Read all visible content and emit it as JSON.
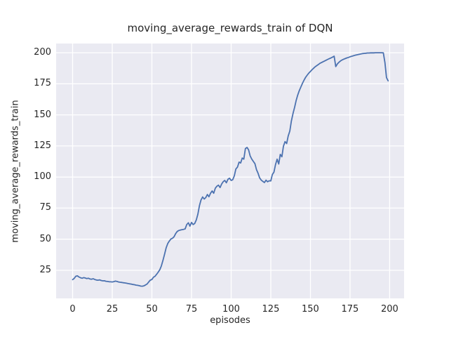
{
  "chart_data": {
    "type": "line",
    "title": "moving_average_rewards_train of DQN",
    "xlabel": "episodes",
    "ylabel": "moving_average_rewards_train",
    "xlim": [
      -10.4,
      209.1
    ],
    "ylim": [
      2.4,
      207.4
    ],
    "x_ticks": [
      0,
      25,
      50,
      75,
      100,
      125,
      150,
      175,
      200
    ],
    "y_ticks": [
      25,
      50,
      75,
      100,
      125,
      150,
      175,
      200
    ],
    "grid": true,
    "legend_position": "none",
    "colors": {
      "line": "#4c72b0",
      "plot_background": "#eaeaf2",
      "grid": "#ffffff",
      "figure_background": "#ffffff",
      "text": "#262626"
    },
    "series": [
      {
        "name": "moving_average_rewards_train",
        "points": [
          [
            0,
            17.5
          ],
          [
            1,
            18.5
          ],
          [
            2,
            20.2
          ],
          [
            3,
            20.5
          ],
          [
            4,
            19.6
          ],
          [
            5,
            19.0
          ],
          [
            6,
            18.6
          ],
          [
            7,
            19.1
          ],
          [
            8,
            18.8
          ],
          [
            9,
            18.3
          ],
          [
            10,
            18.6
          ],
          [
            11,
            18.0
          ],
          [
            12,
            17.8
          ],
          [
            13,
            18.2
          ],
          [
            14,
            17.6
          ],
          [
            15,
            17.2
          ],
          [
            16,
            17.0
          ],
          [
            17,
            17.3
          ],
          [
            18,
            16.8
          ],
          [
            19,
            16.5
          ],
          [
            20,
            16.6
          ],
          [
            21,
            16.2
          ],
          [
            22,
            16.0
          ],
          [
            23,
            15.8
          ],
          [
            24,
            15.7
          ],
          [
            25,
            15.6
          ],
          [
            26,
            15.9
          ],
          [
            27,
            16.3
          ],
          [
            28,
            16.0
          ],
          [
            29,
            15.6
          ],
          [
            30,
            15.4
          ],
          [
            31,
            15.2
          ],
          [
            32,
            15.0
          ],
          [
            33,
            14.8
          ],
          [
            34,
            14.6
          ],
          [
            35,
            14.3
          ],
          [
            36,
            14.1
          ],
          [
            37,
            13.9
          ],
          [
            38,
            13.6
          ],
          [
            39,
            13.4
          ],
          [
            40,
            13.1
          ],
          [
            41,
            12.9
          ],
          [
            42,
            12.6
          ],
          [
            43,
            12.3
          ],
          [
            44,
            12.2
          ],
          [
            45,
            12.5
          ],
          [
            46,
            13.2
          ],
          [
            47,
            14.0
          ],
          [
            48,
            15.6
          ],
          [
            49,
            17.1
          ],
          [
            50,
            17.6
          ],
          [
            51,
            19.4
          ],
          [
            52,
            20.2
          ],
          [
            53,
            21.8
          ],
          [
            54,
            23.5
          ],
          [
            55,
            25.5
          ],
          [
            56,
            28.5
          ],
          [
            57,
            33.0
          ],
          [
            58,
            38.0
          ],
          [
            59,
            43.0
          ],
          [
            60,
            46.5
          ],
          [
            61,
            48.5
          ],
          [
            62,
            50.2
          ],
          [
            63,
            50.8
          ],
          [
            64,
            52.0
          ],
          [
            65,
            54.5
          ],
          [
            66,
            56.2
          ],
          [
            67,
            57.0
          ],
          [
            68,
            57.4
          ],
          [
            69,
            57.7
          ],
          [
            70,
            57.9
          ],
          [
            71,
            58.3
          ],
          [
            72,
            61.8
          ],
          [
            73,
            63.2
          ],
          [
            74,
            60.5
          ],
          [
            75,
            63.5
          ],
          [
            76,
            61.8
          ],
          [
            77,
            62.6
          ],
          [
            78,
            65.5
          ],
          [
            79,
            70.0
          ],
          [
            80,
            77.0
          ],
          [
            81,
            81.5
          ],
          [
            82,
            84.0
          ],
          [
            83,
            82.3
          ],
          [
            84,
            83.5
          ],
          [
            85,
            86.0
          ],
          [
            86,
            84.2
          ],
          [
            87,
            87.0
          ],
          [
            88,
            88.8
          ],
          [
            89,
            87.0
          ],
          [
            90,
            91.0
          ],
          [
            91,
            92.6
          ],
          [
            92,
            93.5
          ],
          [
            93,
            91.6
          ],
          [
            94,
            94.4
          ],
          [
            95,
            96.3
          ],
          [
            96,
            97.3
          ],
          [
            97,
            95.4
          ],
          [
            98,
            98.2
          ],
          [
            99,
            99.1
          ],
          [
            100,
            97.3
          ],
          [
            101,
            97.8
          ],
          [
            102,
            101.0
          ],
          [
            103,
            106.5
          ],
          [
            104,
            108.0
          ],
          [
            105,
            112.0
          ],
          [
            106,
            111.3
          ],
          [
            107,
            115.3
          ],
          [
            108,
            114.4
          ],
          [
            109,
            122.9
          ],
          [
            110,
            123.8
          ],
          [
            111,
            121.9
          ],
          [
            112,
            117.0
          ],
          [
            113,
            114.5
          ],
          [
            114,
            112.6
          ],
          [
            115,
            110.7
          ],
          [
            116,
            106.0
          ],
          [
            117,
            103.0
          ],
          [
            118,
            99.3
          ],
          [
            119,
            97.5
          ],
          [
            120,
            96.5
          ],
          [
            121,
            95.6
          ],
          [
            122,
            97.5
          ],
          [
            123,
            96.2
          ],
          [
            124,
            97.0
          ],
          [
            125,
            96.9
          ],
          [
            126,
            102.0
          ],
          [
            127,
            104.0
          ],
          [
            128,
            110.0
          ],
          [
            129,
            114.4
          ],
          [
            130,
            110.5
          ],
          [
            131,
            118.2
          ],
          [
            132,
            116.3
          ],
          [
            133,
            124.8
          ],
          [
            134,
            128.5
          ],
          [
            135,
            127.0
          ],
          [
            136,
            133.0
          ],
          [
            137,
            137.0
          ],
          [
            138,
            145.0
          ],
          [
            139,
            151.0
          ],
          [
            140,
            156.0
          ],
          [
            141,
            161.5
          ],
          [
            142,
            166.0
          ],
          [
            143,
            169.5
          ],
          [
            144,
            172.5
          ],
          [
            145,
            175.5
          ],
          [
            146,
            178.0
          ],
          [
            147,
            180.3
          ],
          [
            148,
            182.0
          ],
          [
            149,
            183.6
          ],
          [
            150,
            185.0
          ],
          [
            151,
            186.3
          ],
          [
            152,
            187.5
          ],
          [
            153,
            188.7
          ],
          [
            154,
            189.6
          ],
          [
            155,
            190.5
          ],
          [
            156,
            191.5
          ],
          [
            157,
            192.1
          ],
          [
            158,
            192.8
          ],
          [
            159,
            193.4
          ],
          [
            160,
            194.0
          ],
          [
            161,
            194.7
          ],
          [
            162,
            195.3
          ],
          [
            163,
            195.8
          ],
          [
            164,
            196.5
          ],
          [
            165,
            197.2
          ],
          [
            166,
            188.9
          ],
          [
            167,
            191.0
          ],
          [
            168,
            192.3
          ],
          [
            169,
            193.4
          ],
          [
            170,
            194.2
          ],
          [
            171,
            194.8
          ],
          [
            172,
            195.3
          ],
          [
            173,
            195.8
          ],
          [
            174,
            196.2
          ],
          [
            175,
            196.7
          ],
          [
            176,
            197.1
          ],
          [
            177,
            197.5
          ],
          [
            178,
            197.9
          ],
          [
            179,
            198.2
          ],
          [
            180,
            198.5
          ],
          [
            181,
            198.8
          ],
          [
            182,
            199.1
          ],
          [
            183,
            199.3
          ],
          [
            184,
            199.5
          ],
          [
            185,
            199.6
          ],
          [
            186,
            199.8
          ],
          [
            187,
            199.8
          ],
          [
            188,
            199.9
          ],
          [
            189,
            199.9
          ],
          [
            190,
            199.9
          ],
          [
            191,
            200.0
          ],
          [
            192,
            200.0
          ],
          [
            193,
            200.0
          ],
          [
            194,
            200.0
          ],
          [
            195,
            200.0
          ],
          [
            196,
            199.9
          ],
          [
            197,
            192.0
          ],
          [
            198,
            180.0
          ],
          [
            199,
            177.4
          ]
        ]
      }
    ]
  }
}
